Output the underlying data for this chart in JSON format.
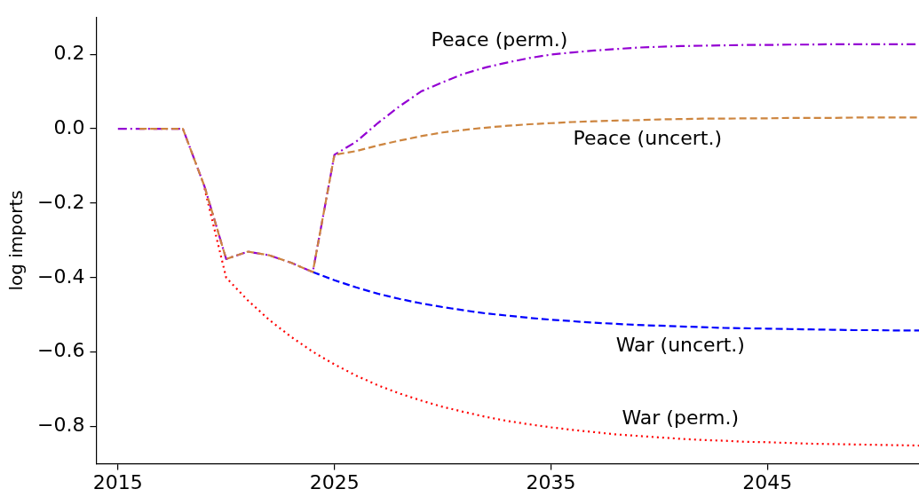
{
  "chart_data": {
    "type": "line",
    "ylabel": "log imports",
    "x": [
      2015,
      2016,
      2017,
      2018,
      2019,
      2020,
      2021,
      2022,
      2023,
      2024,
      2025,
      2026,
      2027,
      2028,
      2029,
      2030,
      2031,
      2032,
      2033,
      2034,
      2035,
      2036,
      2037,
      2038,
      2039,
      2040,
      2041,
      2042,
      2043,
      2044,
      2045,
      2046,
      2047,
      2048,
      2049,
      2050,
      2051,
      2052
    ],
    "xlim": [
      2014,
      2052
    ],
    "xticks": [
      2015,
      2025,
      2035,
      2045
    ],
    "ylim": [
      -0.9,
      0.3
    ],
    "yticks": [
      {
        "value": -0.8,
        "label": "−0.8"
      },
      {
        "value": -0.6,
        "label": "−0.6"
      },
      {
        "value": -0.4,
        "label": "−0.4"
      },
      {
        "value": -0.2,
        "label": "−0.2"
      },
      {
        "value": 0,
        "label": "0.0"
      },
      {
        "value": 0.2,
        "label": "0.2"
      }
    ],
    "grid": false,
    "legend": false,
    "marker": "none",
    "series": [
      {
        "name": "War (perm.)",
        "color": "#ff0000",
        "line_style": "dotted",
        "values": [
          null,
          null,
          null,
          null,
          -0.16,
          -0.4,
          -0.461,
          -0.514,
          -0.559,
          -0.599,
          -0.633,
          -0.663,
          -0.689,
          -0.711,
          -0.73,
          -0.747,
          -0.761,
          -0.774,
          -0.785,
          -0.794,
          -0.802,
          -0.809,
          -0.815,
          -0.821,
          -0.825,
          -0.829,
          -0.833,
          -0.836,
          -0.838,
          -0.841,
          -0.842,
          -0.844,
          -0.846,
          -0.847,
          -0.848,
          -0.849,
          -0.85,
          -0.851
        ]
      },
      {
        "name": "War (uncert.)",
        "color": "#0000ff",
        "line_style": "dashed",
        "values": [
          null,
          null,
          null,
          null,
          null,
          null,
          null,
          null,
          null,
          -0.385,
          -0.407,
          -0.426,
          -0.443,
          -0.457,
          -0.469,
          -0.479,
          -0.488,
          -0.496,
          -0.502,
          -0.508,
          -0.513,
          -0.517,
          -0.521,
          -0.524,
          -0.527,
          -0.529,
          -0.531,
          -0.533,
          -0.535,
          -0.536,
          -0.537,
          -0.538,
          -0.539,
          -0.54,
          -0.541,
          -0.541,
          -0.542,
          -0.542
        ]
      },
      {
        "name": "Peace (uncert.)",
        "color": "#cd853f",
        "line_style": "dashed",
        "values": [
          null,
          0,
          0,
          0,
          -0.155,
          -0.35,
          -0.33,
          -0.34,
          -0.36,
          -0.385,
          -0.07,
          -0.06,
          -0.045,
          -0.032,
          -0.02,
          -0.01,
          -0.003,
          0.003,
          0.008,
          0.012,
          0.015,
          0.018,
          0.02,
          0.022,
          0.023,
          0.025,
          0.026,
          0.027,
          0.027,
          0.028,
          0.028,
          0.029,
          0.029,
          0.029,
          0.03,
          0.03,
          0.03,
          0.03
        ]
      },
      {
        "name": "Peace (perm.)",
        "color": "#9400d3",
        "line_style": "dashdot",
        "values": [
          0,
          0,
          0,
          0,
          -0.155,
          -0.35,
          -0.33,
          -0.34,
          -0.36,
          -0.385,
          -0.07,
          -0.035,
          0.015,
          0.06,
          0.1,
          0.125,
          0.148,
          0.165,
          0.178,
          0.19,
          0.199,
          0.205,
          0.21,
          0.214,
          0.218,
          0.22,
          0.222,
          0.223,
          0.224,
          0.225,
          0.225,
          0.226,
          0.226,
          0.227,
          0.227,
          0.227,
          0.227,
          0.227
        ]
      }
    ]
  }
}
